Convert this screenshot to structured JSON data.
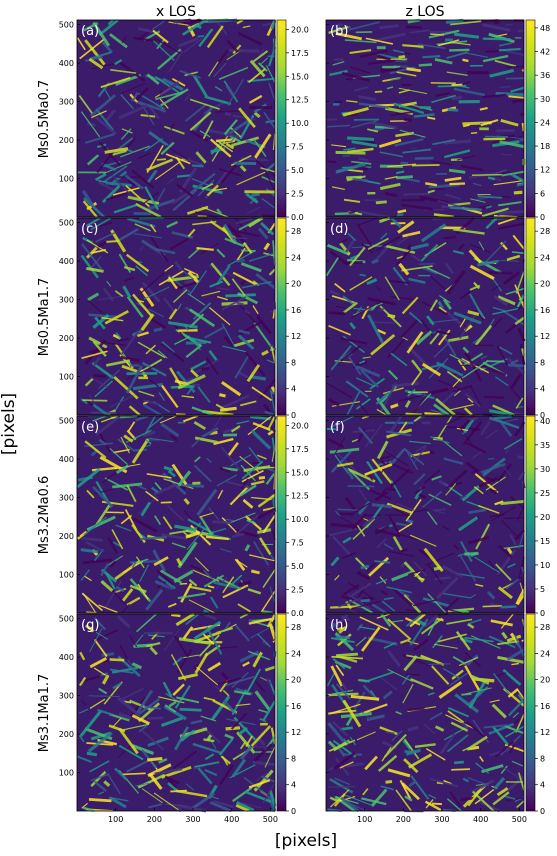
{
  "figure": {
    "column_titles": [
      "x LOS",
      "z LOS"
    ],
    "xlabel": "[pixels]",
    "ylabel": "[pixels]"
  },
  "chart_data": {
    "type": "heatmap",
    "colormap": "viridis",
    "x_ticks": [
      100,
      200,
      300,
      400,
      500
    ],
    "y_ticks": [
      100,
      200,
      300,
      400,
      500
    ],
    "xlim": [
      0,
      512
    ],
    "ylim": [
      0,
      512
    ],
    "rows": [
      {
        "label": "Ms0.5Ma0.7",
        "panels": [
          {
            "tag": "(a)",
            "vmin": 0,
            "vmax": 21,
            "cbar_ticks": [
              "0.0",
              "2.5",
              "5.0",
              "7.5",
              "10.0",
              "12.5",
              "15.0",
              "17.5",
              "20.0"
            ],
            "cbar_values": [
              0,
              2.5,
              5,
              7.5,
              10,
              12.5,
              15,
              17.5,
              20
            ]
          },
          {
            "tag": "(b)",
            "vmin": 0,
            "vmax": 50,
            "cbar_ticks": [
              "0",
              "6",
              "12",
              "18",
              "24",
              "30",
              "36",
              "42",
              "48"
            ],
            "cbar_values": [
              0,
              6,
              12,
              18,
              24,
              30,
              36,
              42,
              48
            ]
          }
        ]
      },
      {
        "label": "Ms0.5Ma1.7",
        "panels": [
          {
            "tag": "(c)",
            "vmin": 0,
            "vmax": 30,
            "cbar_ticks": [
              "0",
              "4",
              "8",
              "12",
              "16",
              "20",
              "24",
              "28"
            ],
            "cbar_values": [
              0,
              4,
              8,
              12,
              16,
              20,
              24,
              28
            ]
          },
          {
            "tag": "(d)",
            "vmin": 0,
            "vmax": 30,
            "cbar_ticks": [
              "0",
              "4",
              "8",
              "12",
              "16",
              "20",
              "24",
              "28"
            ],
            "cbar_values": [
              0,
              4,
              8,
              12,
              16,
              20,
              24,
              28
            ]
          }
        ]
      },
      {
        "label": "Ms3.2Ma0.6",
        "panels": [
          {
            "tag": "(e)",
            "vmin": 0,
            "vmax": 21,
            "cbar_ticks": [
              "0.0",
              "2.5",
              "5.0",
              "7.5",
              "10.0",
              "12.5",
              "15.0",
              "17.5",
              "20.0"
            ],
            "cbar_values": [
              0,
              2.5,
              5,
              7.5,
              10,
              12.5,
              15,
              17.5,
              20
            ]
          },
          {
            "tag": "(f)",
            "vmin": 0,
            "vmax": 41,
            "cbar_ticks": [
              "0",
              "5",
              "10",
              "15",
              "20",
              "25",
              "30",
              "35",
              "40"
            ],
            "cbar_values": [
              0,
              5,
              10,
              15,
              20,
              25,
              30,
              35,
              40
            ]
          }
        ]
      },
      {
        "label": "Ms3.1Ma1.7",
        "panels": [
          {
            "tag": "(g)",
            "vmin": 0,
            "vmax": 30,
            "cbar_ticks": [
              "0",
              "4",
              "8",
              "12",
              "16",
              "20",
              "24",
              "28"
            ],
            "cbar_values": [
              0,
              4,
              8,
              12,
              16,
              20,
              24,
              28
            ]
          },
          {
            "tag": "(h)",
            "vmin": 0,
            "vmax": 30,
            "cbar_ticks": [
              "0",
              "4",
              "8",
              "12",
              "16",
              "20",
              "24",
              "28"
            ],
            "cbar_values": [
              0,
              4,
              8,
              12,
              16,
              20,
              24,
              28
            ]
          }
        ]
      }
    ]
  }
}
